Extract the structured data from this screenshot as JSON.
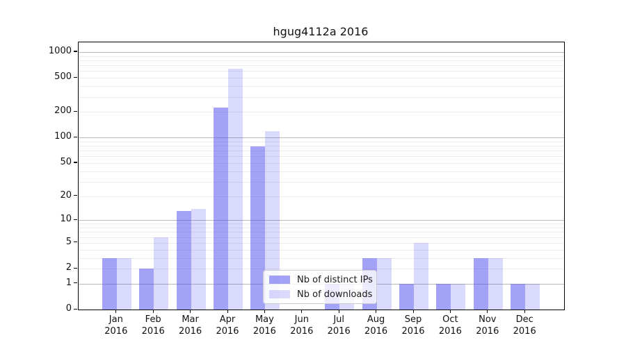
{
  "title": "hgug4112a 2016",
  "year": "2016",
  "legend": {
    "items": [
      {
        "label": "Nb of distinct IPs",
        "color": "#a3a3f3",
        "fill": "rgba(70,70,240,0.5)"
      },
      {
        "label": "Nb of downloads",
        "color": "#dadaf9",
        "fill": "rgba(70,70,240,0.2)"
      }
    ]
  },
  "y_axis": {
    "tick_labels": [
      "0",
      "1",
      "2",
      "5",
      "10",
      "20",
      "50",
      "100",
      "200",
      "500",
      "1000"
    ]
  },
  "x_axis": {
    "months": [
      "Jan",
      "Feb",
      "Mar",
      "Apr",
      "May",
      "Jun",
      "Jul",
      "Aug",
      "Sep",
      "Oct",
      "Nov",
      "Dec"
    ]
  },
  "colors": {
    "bar_distinct_ips": "#a3a3f3",
    "bar_downloads": "#dadaf9",
    "grid_major": "#b8b8b8",
    "grid_minor": "#ececec",
    "axis": "#000000"
  },
  "chart_data": {
    "type": "bar",
    "title": "hgug4112a 2016",
    "xlabel": "",
    "ylabel": "",
    "y_scale": "log1p",
    "ylim": [
      0,
      1300
    ],
    "grid": true,
    "legend_position": "bottom-center",
    "y_ticks": [
      0,
      1,
      2,
      5,
      10,
      20,
      50,
      100,
      200,
      500,
      1000
    ],
    "categories": [
      "Jan 2016",
      "Feb 2016",
      "Mar 2016",
      "Apr 2016",
      "May 2016",
      "Jun 2016",
      "Jul 2016",
      "Aug 2016",
      "Sep 2016",
      "Oct 2016",
      "Nov 2016",
      "Dec 2016"
    ],
    "series": [
      {
        "name": "Nb of distinct IPs",
        "fill": "rgba(70,70,240,0.5)",
        "values": [
          3,
          2,
          13,
          225,
          78,
          0,
          1,
          3,
          1,
          1,
          3,
          1
        ]
      },
      {
        "name": "Nb of downloads",
        "fill": "rgba(70,70,240,0.2)",
        "values": [
          3,
          6,
          14,
          640,
          119,
          0,
          1,
          3,
          5,
          1,
          3,
          1
        ]
      }
    ]
  }
}
